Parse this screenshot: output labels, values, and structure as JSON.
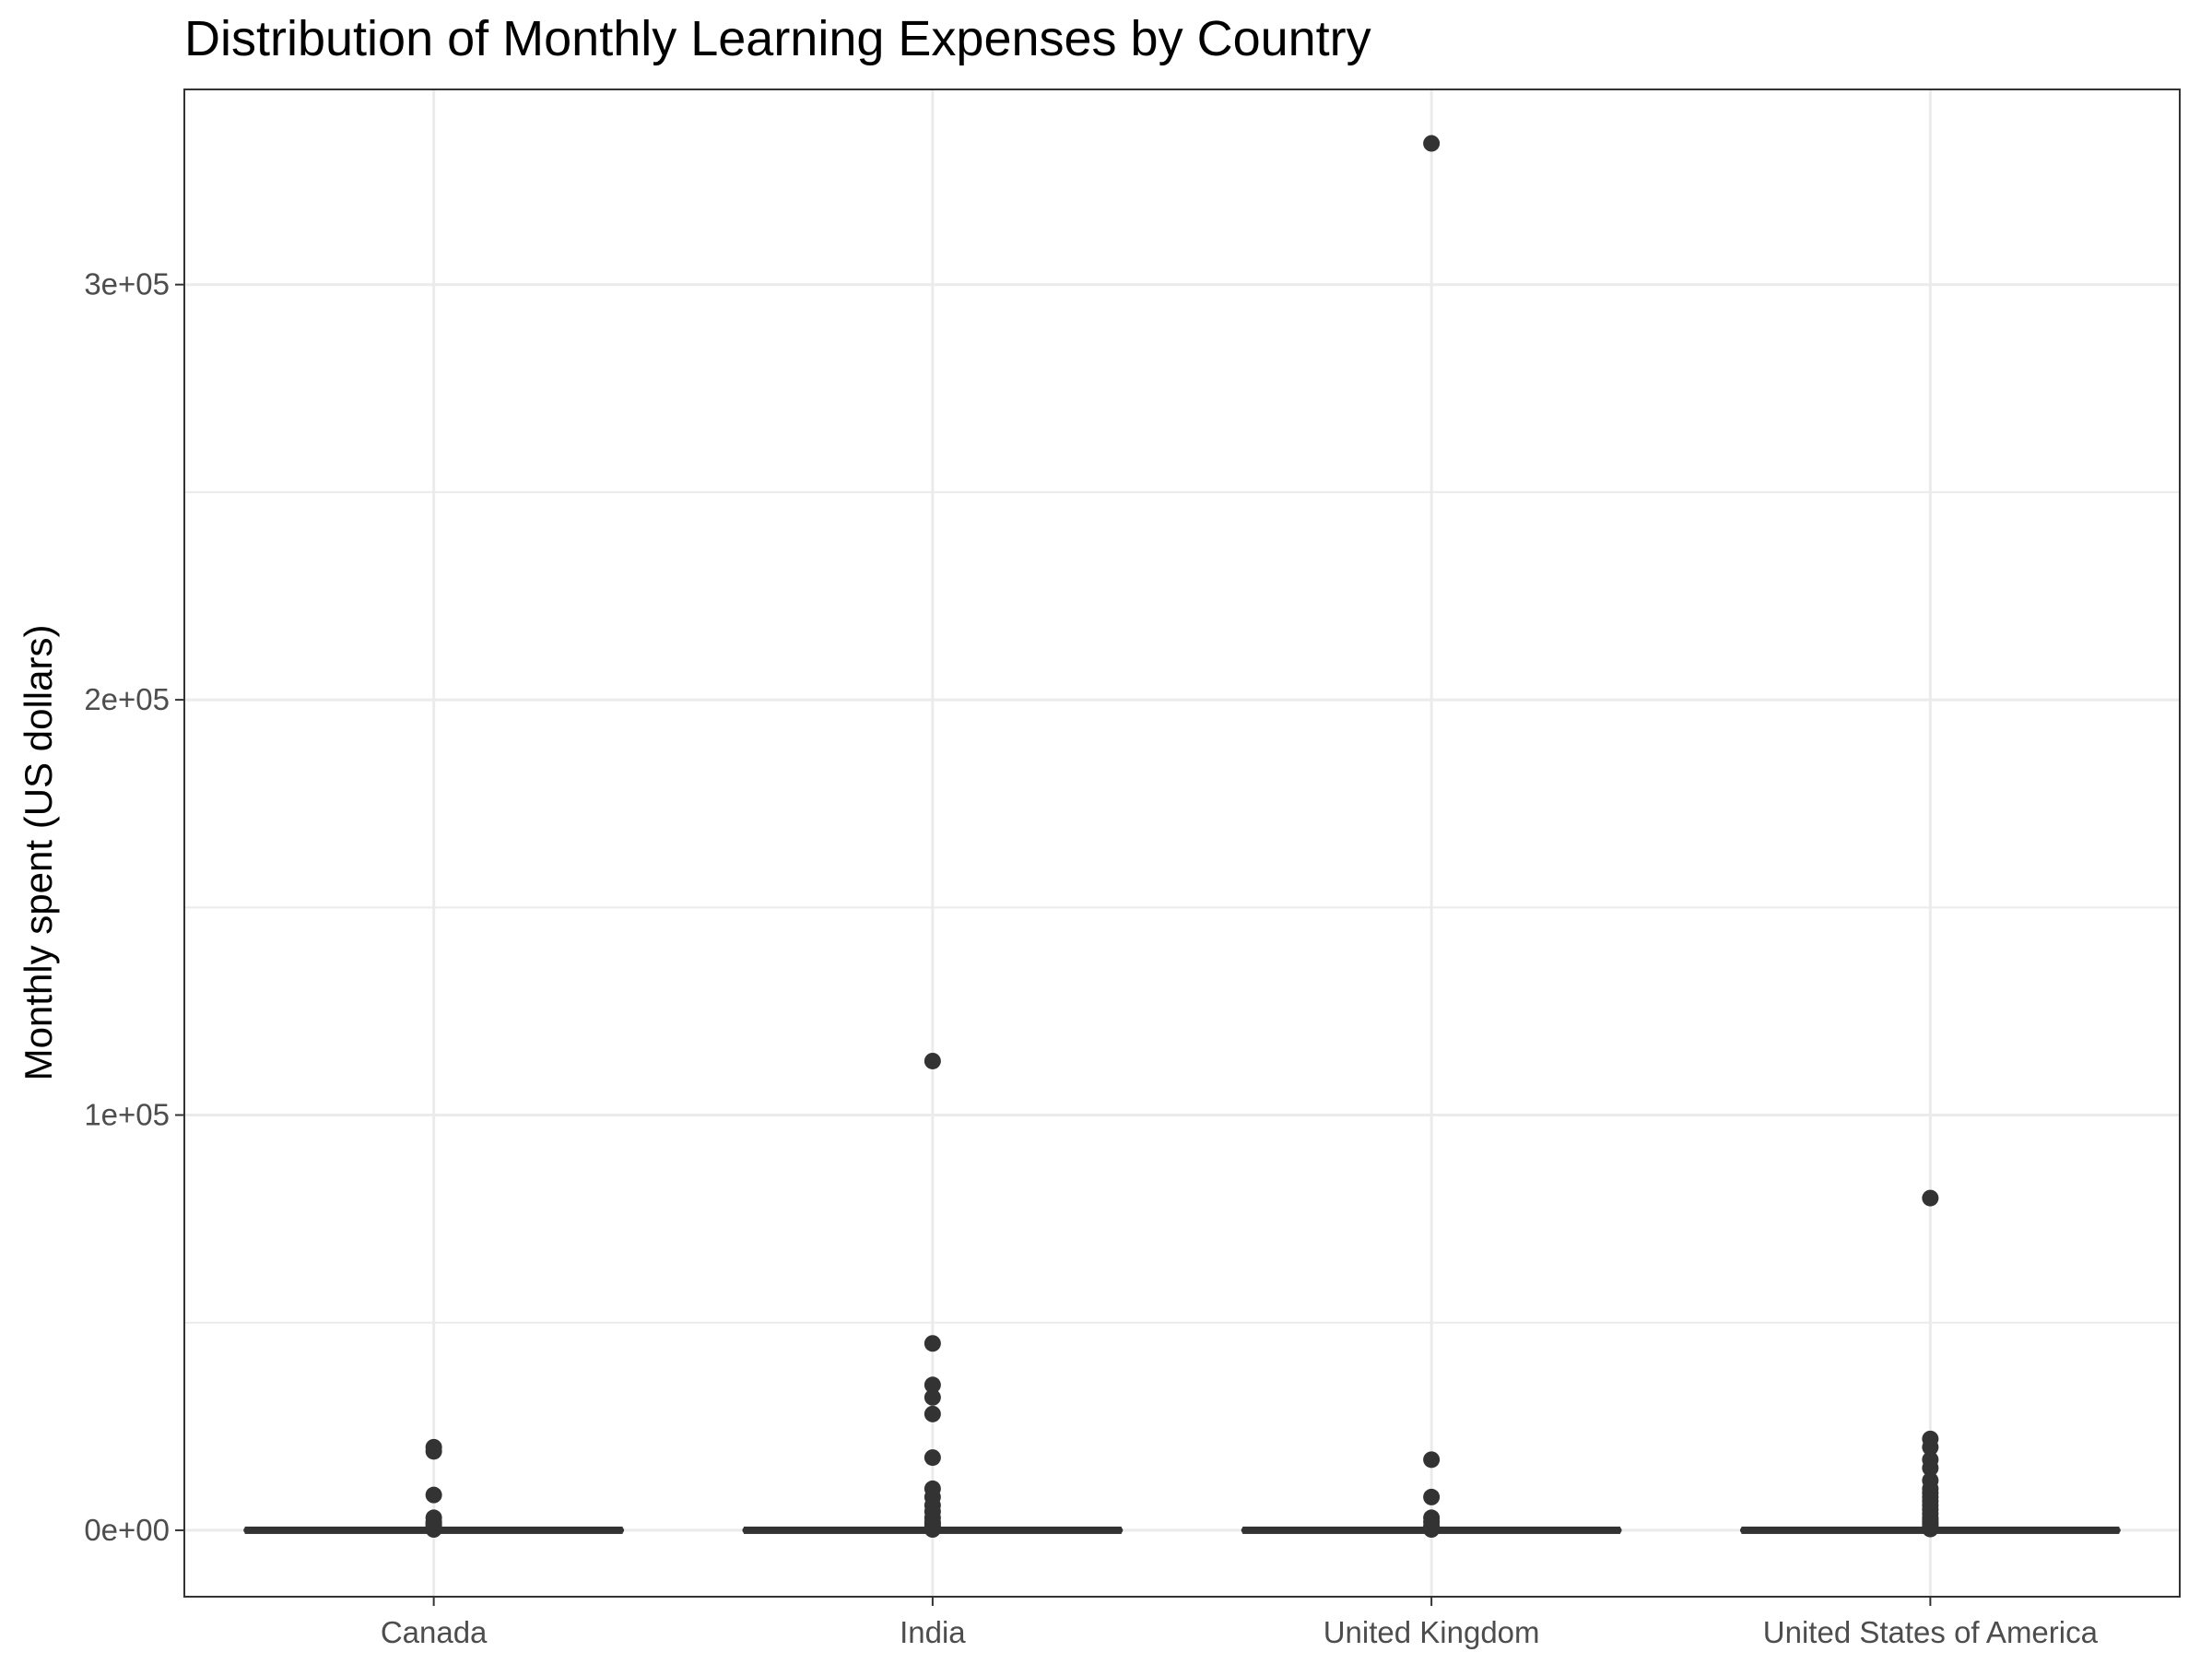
{
  "chart_data": {
    "type": "boxplot",
    "title": "Distribution of Monthly Learning Expenses by Country",
    "xlabel": "",
    "ylabel": "Monthly spent (US dollars)",
    "ylim": [
      -16000,
      347000
    ],
    "y_ticks": [
      {
        "value": 0,
        "label": "0e+00"
      },
      {
        "value": 100000,
        "label": "1e+05"
      },
      {
        "value": 200000,
        "label": "2e+05"
      },
      {
        "value": 300000,
        "label": "3e+05"
      }
    ],
    "grid": true,
    "colors": {
      "panel_border": "#333333",
      "grid": "#ebebeb",
      "box": "#333333",
      "outlier": "#333333"
    },
    "categories": [
      "Canada",
      "India",
      "United Kingdom",
      "United States of America"
    ],
    "boxes": [
      {
        "category": "Canada",
        "min": 0,
        "q1": 0,
        "median": 0,
        "q3": 0,
        "max": 0,
        "outliers": [
          20000,
          19000,
          8500,
          3000,
          2000,
          1500,
          1000,
          500,
          200
        ]
      },
      {
        "category": "India",
        "min": 0,
        "q1": 0,
        "median": 0,
        "q3": 0,
        "max": 0,
        "outliers": [
          113000,
          45000,
          35000,
          32000,
          28000,
          17500,
          10000,
          8000,
          6000,
          4500,
          3000,
          2000,
          1500,
          1000,
          500,
          200
        ]
      },
      {
        "category": "United Kingdom",
        "min": 0,
        "q1": 0,
        "median": 0,
        "q3": 0,
        "max": 0,
        "outliers": [
          334000,
          17000,
          8000,
          3000,
          2000,
          1000,
          500,
          200
        ]
      },
      {
        "category": "United States of America",
        "min": 0,
        "q1": 0,
        "median": 0,
        "q3": 0,
        "max": 0,
        "outliers": [
          80000,
          22000,
          20000,
          17000,
          15000,
          12000,
          10000,
          9000,
          8000,
          7000,
          6000,
          5000,
          4000,
          3000,
          2500,
          2000,
          1500,
          1000,
          600,
          300
        ]
      }
    ]
  }
}
